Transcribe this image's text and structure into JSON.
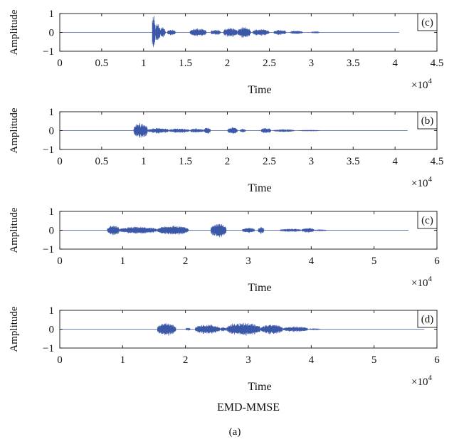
{
  "figure": {
    "title": "EMD-MMSE",
    "caption": "(a)"
  },
  "chart_data": [
    {
      "type": "line",
      "panel_label": "(c)",
      "xlabel": "Time",
      "ylabel": "Amplitude",
      "x_exponent": "×10^4",
      "xlim": [
        0,
        4.5
      ],
      "ylim": [
        -1,
        1
      ],
      "xticks": [
        "0",
        "0.5",
        "1",
        "1.5",
        "2",
        "2.5",
        "3",
        "3.5",
        "4",
        "4.5"
      ],
      "yticks": [
        "−1",
        "0",
        "1"
      ],
      "signal_end": 4.05,
      "envelope": [
        {
          "start": 1.1,
          "end": 1.14,
          "amp": 1.0
        },
        {
          "start": 1.14,
          "end": 1.2,
          "amp": 0.55
        },
        {
          "start": 1.2,
          "end": 1.26,
          "amp": 0.3
        },
        {
          "start": 1.28,
          "end": 1.38,
          "amp": 0.18
        },
        {
          "start": 1.55,
          "end": 1.75,
          "amp": 0.22
        },
        {
          "start": 1.8,
          "end": 1.92,
          "amp": 0.16
        },
        {
          "start": 1.95,
          "end": 2.12,
          "amp": 0.27
        },
        {
          "start": 2.12,
          "end": 2.28,
          "amp": 0.3
        },
        {
          "start": 2.3,
          "end": 2.5,
          "amp": 0.2
        },
        {
          "start": 2.55,
          "end": 2.7,
          "amp": 0.15
        },
        {
          "start": 2.75,
          "end": 2.9,
          "amp": 0.1
        },
        {
          "start": 3.0,
          "end": 3.1,
          "amp": 0.06
        }
      ]
    },
    {
      "type": "line",
      "panel_label": "(b)",
      "xlabel": "Time",
      "ylabel": "Amplitude",
      "x_exponent": "×10^4",
      "xlim": [
        0,
        4.5
      ],
      "ylim": [
        -1,
        1
      ],
      "xticks": [
        "0",
        "0.5",
        "1",
        "1.5",
        "2",
        "2.5",
        "3",
        "3.5",
        "4",
        "4.5"
      ],
      "yticks": [
        "−1",
        "0",
        "1"
      ],
      "signal_end": 4.15,
      "envelope": [
        {
          "start": 0.88,
          "end": 1.05,
          "amp": 0.45
        },
        {
          "start": 1.05,
          "end": 1.3,
          "amp": 0.16
        },
        {
          "start": 1.3,
          "end": 1.55,
          "amp": 0.13
        },
        {
          "start": 1.55,
          "end": 1.72,
          "amp": 0.12
        },
        {
          "start": 1.72,
          "end": 1.8,
          "amp": 0.18
        },
        {
          "start": 2.0,
          "end": 2.12,
          "amp": 0.2
        },
        {
          "start": 2.15,
          "end": 2.22,
          "amp": 0.1
        },
        {
          "start": 2.4,
          "end": 2.52,
          "amp": 0.16
        },
        {
          "start": 2.55,
          "end": 2.8,
          "amp": 0.08
        },
        {
          "start": 2.85,
          "end": 3.1,
          "amp": 0.04
        }
      ]
    },
    {
      "type": "line",
      "panel_label": "(c)",
      "xlabel": "Time",
      "ylabel": "Amplitude",
      "x_exponent": "×10^4",
      "xlim": [
        0,
        6
      ],
      "ylim": [
        -1,
        1
      ],
      "xticks": [
        "0",
        "1",
        "2",
        "3",
        "4",
        "5",
        "6"
      ],
      "yticks": [
        "−1",
        "0",
        "1"
      ],
      "signal_end": 5.55,
      "envelope": [
        {
          "start": 0.75,
          "end": 0.95,
          "amp": 0.28
        },
        {
          "start": 0.95,
          "end": 1.55,
          "amp": 0.2
        },
        {
          "start": 1.55,
          "end": 2.05,
          "amp": 0.27
        },
        {
          "start": 2.4,
          "end": 2.65,
          "amp": 0.42
        },
        {
          "start": 2.9,
          "end": 3.1,
          "amp": 0.16
        },
        {
          "start": 3.15,
          "end": 3.25,
          "amp": 0.2
        },
        {
          "start": 3.5,
          "end": 3.85,
          "amp": 0.09
        },
        {
          "start": 3.85,
          "end": 4.05,
          "amp": 0.14
        },
        {
          "start": 4.05,
          "end": 4.25,
          "amp": 0.05
        }
      ]
    },
    {
      "type": "line",
      "panel_label": "(d)",
      "xlabel": "Time",
      "ylabel": "Amplitude",
      "x_exponent": "×10^4",
      "xlim": [
        0,
        6
      ],
      "ylim": [
        -1,
        1
      ],
      "xticks": [
        "0",
        "1",
        "2",
        "3",
        "4",
        "5",
        "6"
      ],
      "yticks": [
        "−1",
        "0",
        "1"
      ],
      "signal_end": 5.8,
      "envelope": [
        {
          "start": 1.55,
          "end": 1.85,
          "amp": 0.38
        },
        {
          "start": 2.0,
          "end": 2.08,
          "amp": 0.08
        },
        {
          "start": 2.15,
          "end": 2.55,
          "amp": 0.27
        },
        {
          "start": 2.55,
          "end": 2.65,
          "amp": 0.12
        },
        {
          "start": 2.65,
          "end": 3.2,
          "amp": 0.38
        },
        {
          "start": 3.2,
          "end": 3.55,
          "amp": 0.28
        },
        {
          "start": 3.55,
          "end": 3.95,
          "amp": 0.16
        },
        {
          "start": 3.95,
          "end": 4.15,
          "amp": 0.05
        }
      ]
    }
  ],
  "colors": {
    "signal": "#3b57a8",
    "axis": "#111111"
  }
}
